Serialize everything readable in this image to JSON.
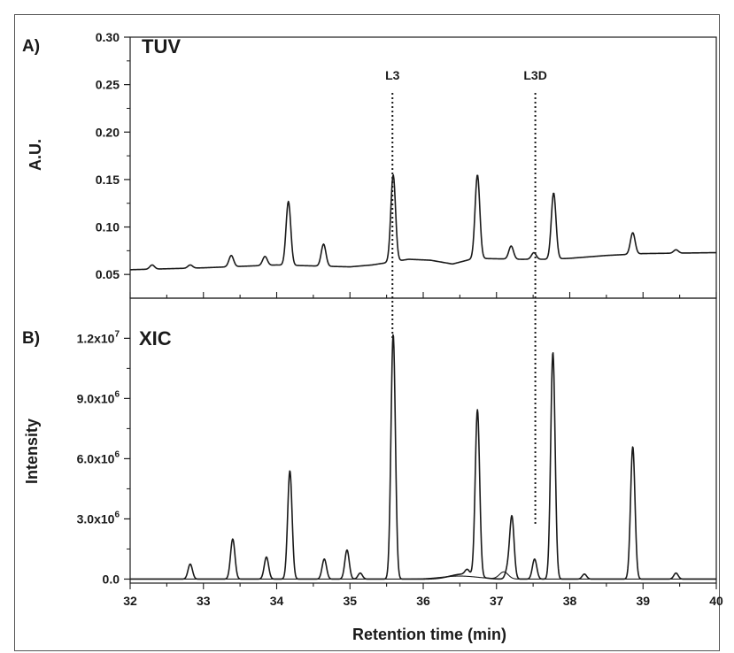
{
  "figure": {
    "border_color": "#555555",
    "trace_color": "#1a1a1a"
  },
  "chart_data": [
    {
      "type": "line",
      "panel_letter": "A)",
      "title": "TUV",
      "xlabel": "",
      "ylabel": "A.U.",
      "xlim": [
        32,
        40
      ],
      "ylim": [
        0.025,
        0.3
      ],
      "yticks": [
        0.05,
        0.1,
        0.15,
        0.2,
        0.25,
        0.3
      ],
      "ytick_labels": [
        "0.05",
        "0.10",
        "0.15",
        "0.20",
        "0.25",
        "0.30"
      ],
      "grid": false,
      "baseline": [
        [
          32.0,
          0.055
        ],
        [
          33.0,
          0.057
        ],
        [
          34.0,
          0.06
        ],
        [
          35.0,
          0.058
        ],
        [
          35.3,
          0.06
        ],
        [
          35.8,
          0.066
        ],
        [
          36.1,
          0.065
        ],
        [
          36.4,
          0.061
        ],
        [
          36.7,
          0.067
        ],
        [
          37.3,
          0.066
        ],
        [
          37.7,
          0.066
        ],
        [
          38.0,
          0.067
        ],
        [
          38.5,
          0.07
        ],
        [
          39.0,
          0.072
        ],
        [
          40.0,
          0.073
        ]
      ],
      "peaks": [
        {
          "rt": 32.3,
          "height": 0.06
        },
        {
          "rt": 32.82,
          "height": 0.06
        },
        {
          "rt": 33.38,
          "height": 0.07
        },
        {
          "rt": 33.84,
          "height": 0.069
        },
        {
          "rt": 34.16,
          "height": 0.127
        },
        {
          "rt": 34.64,
          "height": 0.082
        },
        {
          "rt": 35.59,
          "height": 0.155
        },
        {
          "rt": 36.74,
          "height": 0.155
        },
        {
          "rt": 37.2,
          "height": 0.08
        },
        {
          "rt": 37.51,
          "height": 0.073
        },
        {
          "rt": 37.78,
          "height": 0.136
        },
        {
          "rt": 38.86,
          "height": 0.094
        },
        {
          "rt": 39.45,
          "height": 0.076
        }
      ]
    },
    {
      "type": "line",
      "panel_letter": "B)",
      "title": "XIC",
      "xlabel": "Retention time (min)",
      "ylabel": "Intensity",
      "xlim": [
        32,
        40
      ],
      "ylim": [
        -0.2,
        14.0
      ],
      "y_unit_multiplier": 1000000,
      "yticks": [
        0.0,
        3.0,
        6.0,
        9.0,
        12.0
      ],
      "ytick_labels": [
        {
          "mantissa": "0.0",
          "exp": ""
        },
        {
          "mantissa": "3.0x10",
          "exp": "6"
        },
        {
          "mantissa": "6.0x10",
          "exp": "6"
        },
        {
          "mantissa": "9.0x10",
          "exp": "6"
        },
        {
          "mantissa": "1.2x10",
          "exp": "7"
        }
      ],
      "xticks": [
        32,
        33,
        34,
        35,
        36,
        37,
        38,
        39,
        40
      ],
      "xtick_labels": [
        "32",
        "33",
        "34",
        "35",
        "36",
        "37",
        "38",
        "39",
        "40"
      ],
      "grid": false,
      "peaks": [
        {
          "rt": 32.82,
          "height": 0.75
        },
        {
          "rt": 33.4,
          "height": 2.0
        },
        {
          "rt": 33.86,
          "height": 1.1
        },
        {
          "rt": 34.18,
          "height": 5.4
        },
        {
          "rt": 34.65,
          "height": 1.0
        },
        {
          "rt": 34.96,
          "height": 1.45
        },
        {
          "rt": 35.14,
          "height": 0.3
        },
        {
          "rt": 35.59,
          "height": 12.2
        },
        {
          "rt": 36.6,
          "height": 0.25
        },
        {
          "rt": 36.74,
          "height": 8.3
        },
        {
          "rt": 37.15,
          "height": 0.45
        },
        {
          "rt": 37.21,
          "height": 3.1
        },
        {
          "rt": 37.52,
          "height": 1.0
        },
        {
          "rt": 37.77,
          "height": 11.3
        },
        {
          "rt": 38.2,
          "height": 0.25
        },
        {
          "rt": 38.86,
          "height": 6.6
        },
        {
          "rt": 39.45,
          "height": 0.3
        }
      ]
    }
  ],
  "markers": [
    {
      "label": "L3",
      "rt": 35.58
    },
    {
      "label": "L3D",
      "rt": 37.53
    }
  ]
}
